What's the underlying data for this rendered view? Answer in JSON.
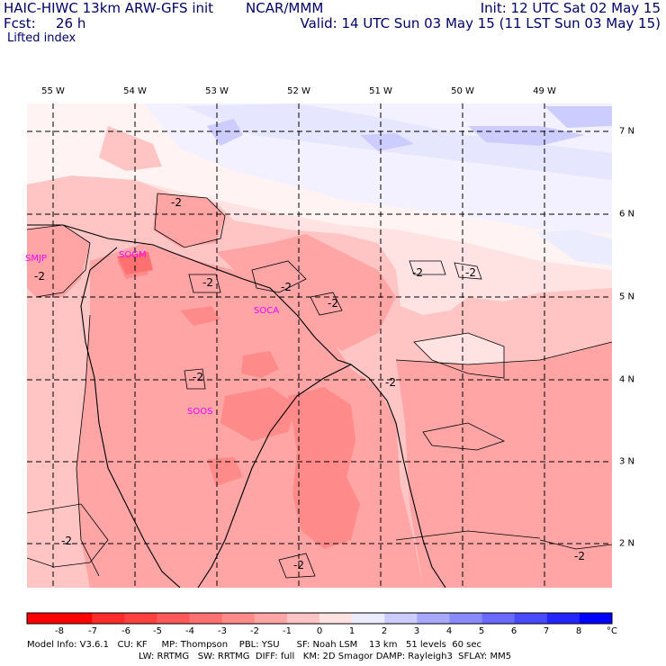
{
  "header": {
    "model_title": "HAIC-HIWC 13km ARW-GFS init",
    "org": "NCAR/MMM",
    "init": "Init: 12 UTC Sat 02 May 15",
    "fcst_label": "Fcst:",
    "fcst_value": "26 h",
    "valid": "Valid: 14 UTC Sun 03 May 15 (11 LST Sun 03 May 15)",
    "field": "Lifted index"
  },
  "map": {
    "lon_labels": [
      "55 W",
      "54 W",
      "53 W",
      "52 W",
      "51 W",
      "50 W",
      "49 W"
    ],
    "lat_labels": [
      "7 N",
      "6 N",
      "5 N",
      "4 N",
      "3 N",
      "2 N"
    ],
    "stations": [
      "SMJP",
      "SOGM",
      "SOCA",
      "SOOS"
    ],
    "contour_label": "-2",
    "colors": {
      "border": "#000000",
      "station": "#ff00ff",
      "grid": "#000000"
    }
  },
  "colorbar": {
    "ticks": [
      "-8",
      "-7",
      "-6",
      "-5",
      "-4",
      "-3",
      "-2",
      "-1",
      "0",
      "1",
      "2",
      "3",
      "4",
      "5",
      "6",
      "7",
      "8"
    ],
    "unit": "°C",
    "colors": [
      "#ff0000",
      "#ff2a2a",
      "#ff4040",
      "#ff5858",
      "#ff7070",
      "#ff8a8a",
      "#ffa5a5",
      "#ffc5c5",
      "#ffe3e3",
      "#ececff",
      "#ccccff",
      "#a8a8ff",
      "#8a8aff",
      "#6a6aff",
      "#4a4aff",
      "#2525ff",
      "#0000ff"
    ]
  },
  "footer": {
    "line1": "Model Info: V3.6.1   CU: KF     MP: Thompson    PBL: YSU      SF: Noah LSM    13 km   51 levels  60 sec",
    "line2": "LW: RRTMG   SW: RRTMG  DIFF: full   KM: 2D Smagor DAMP: Rayleigh3  SFLAY: MM5"
  }
}
